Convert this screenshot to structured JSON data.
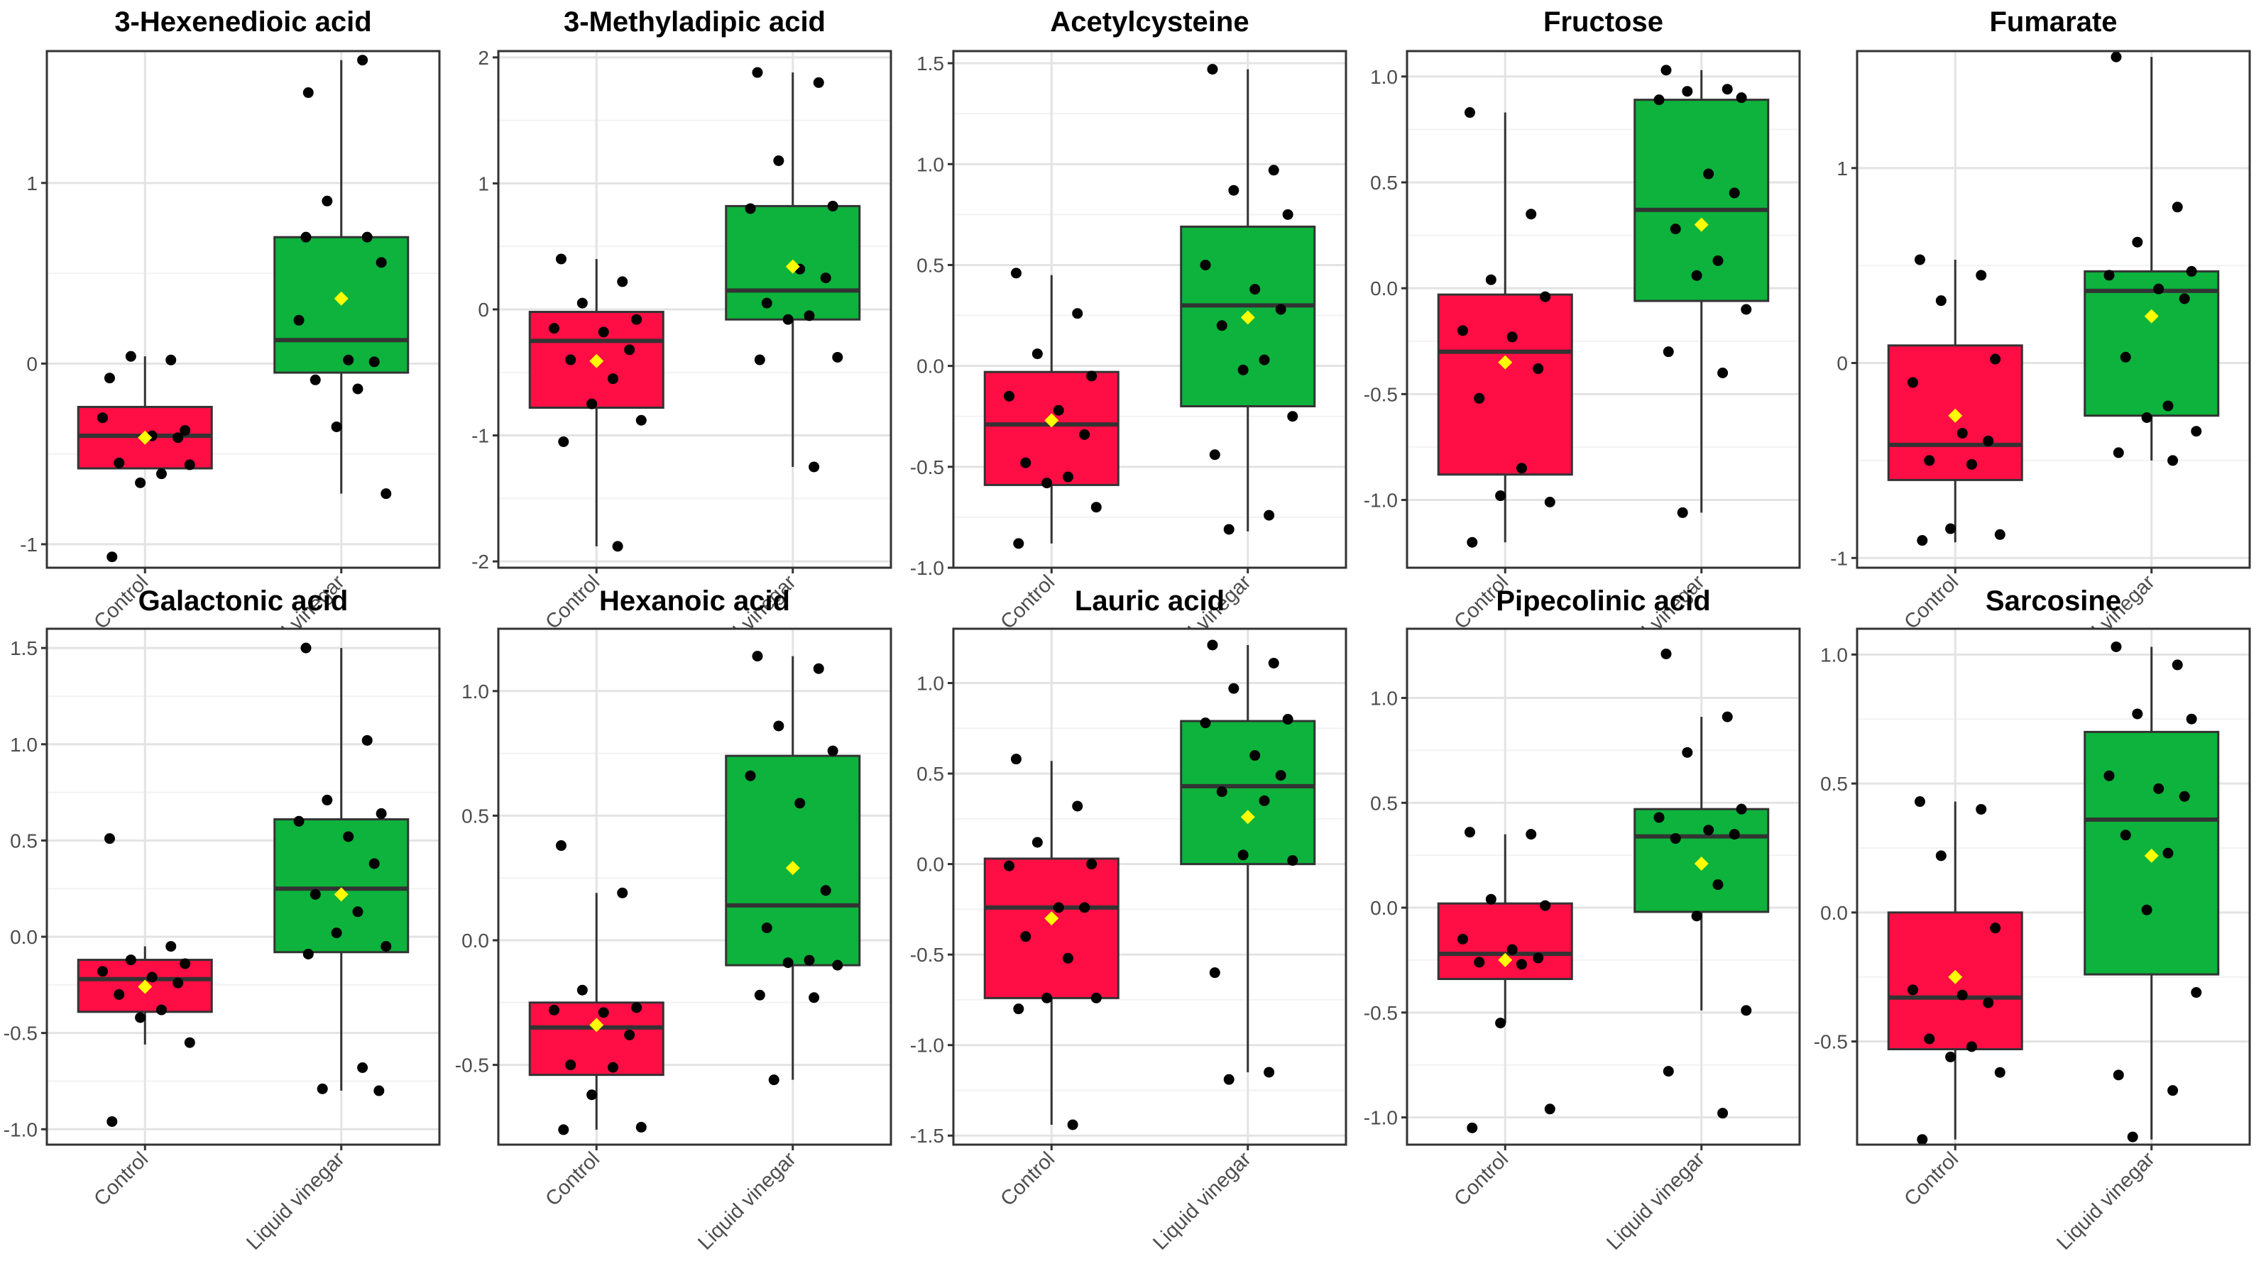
{
  "chart_data": [
    {
      "type": "box",
      "title": "3-Hexenedioic acid",
      "categories": [
        "Control",
        "Liquid vinegar"
      ],
      "ylim": [
        -1.13,
        1.73
      ],
      "yticks": [
        -1,
        0,
        1
      ],
      "ytick_labels": [
        "-1",
        "0",
        "1"
      ],
      "boxes": [
        {
          "q1": -0.58,
          "median": -0.4,
          "q3": -0.24,
          "whisker_low": -0.58,
          "whisker_high": 0.04,
          "mean": -0.41
        },
        {
          "q1": -0.05,
          "median": 0.13,
          "q3": 0.7,
          "whisker_low": -0.72,
          "whisker_high": 1.68,
          "mean": 0.36
        }
      ],
      "points": [
        [
          -0.08,
          0.02,
          0.04,
          -0.37,
          -0.3,
          -0.4,
          -0.41,
          -0.55,
          -0.61,
          -0.66,
          -0.56,
          -1.07
        ],
        [
          0.7,
          0.7,
          0.9,
          0.56,
          0.24,
          0.02,
          0.01,
          -0.09,
          -0.14,
          -0.35,
          -0.72,
          1.5,
          1.68
        ]
      ]
    },
    {
      "type": "box",
      "title": "3-Methyladipic acid",
      "categories": [
        "Control",
        "Liquid vinegar"
      ],
      "ylim": [
        -2.05,
        2.05
      ],
      "yticks": [
        -2,
        -1,
        0,
        1,
        2
      ],
      "ytick_labels": [
        "-2",
        "-1",
        "0",
        "1",
        "2"
      ],
      "boxes": [
        {
          "q1": -0.78,
          "median": -0.25,
          "q3": -0.02,
          "whisker_low": -1.88,
          "whisker_high": 0.4,
          "mean": -0.41
        },
        {
          "q1": -0.08,
          "median": 0.15,
          "q3": 0.82,
          "whisker_low": -1.25,
          "whisker_high": 1.88,
          "mean": 0.34
        }
      ],
      "points": [
        [
          0.4,
          0.22,
          0.05,
          -0.08,
          -0.15,
          -0.18,
          -0.32,
          -0.4,
          -0.55,
          -0.75,
          -0.88,
          -1.05,
          -1.88
        ],
        [
          1.88,
          1.8,
          1.18,
          0.82,
          0.8,
          0.32,
          0.25,
          0.05,
          -0.05,
          -0.08,
          -0.38,
          -0.4,
          -1.25
        ]
      ]
    },
    {
      "type": "box",
      "title": "Acetylcysteine",
      "categories": [
        "Control",
        "Liquid vinegar"
      ],
      "ylim": [
        -1.0,
        1.56
      ],
      "yticks": [
        -1.0,
        -0.5,
        0.0,
        0.5,
        1.0,
        1.5
      ],
      "ytick_labels": [
        "-1.0",
        "-0.5",
        "0.0",
        "0.5",
        "1.0",
        "1.5"
      ],
      "boxes": [
        {
          "q1": -0.59,
          "median": -0.29,
          "q3": -0.03,
          "whisker_low": -0.88,
          "whisker_high": 0.45,
          "mean": -0.27
        },
        {
          "q1": -0.2,
          "median": 0.3,
          "q3": 0.69,
          "whisker_low": -0.82,
          "whisker_high": 1.47,
          "mean": 0.24
        }
      ],
      "points": [
        [
          0.46,
          0.26,
          0.06,
          -0.05,
          -0.15,
          -0.22,
          -0.34,
          -0.48,
          -0.55,
          -0.58,
          -0.7,
          -0.88
        ],
        [
          1.47,
          0.97,
          0.87,
          0.75,
          0.5,
          0.38,
          0.28,
          0.2,
          0.03,
          -0.02,
          -0.25,
          -0.44,
          -0.74,
          -0.81
        ]
      ]
    },
    {
      "type": "box",
      "title": "Fructose",
      "categories": [
        "Control",
        "Liquid vinegar"
      ],
      "ylim": [
        -1.32,
        1.12
      ],
      "yticks": [
        -1.0,
        -0.5,
        0.0,
        0.5,
        1.0
      ],
      "ytick_labels": [
        "-1.0",
        "-0.5",
        "0.0",
        "0.5",
        "1.0"
      ],
      "boxes": [
        {
          "q1": -0.88,
          "median": -0.3,
          "q3": -0.03,
          "whisker_low": -1.2,
          "whisker_high": 0.83,
          "mean": -0.35
        },
        {
          "q1": -0.06,
          "median": 0.37,
          "q3": 0.89,
          "whisker_low": -1.06,
          "whisker_high": 1.03,
          "mean": 0.3
        }
      ],
      "points": [
        [
          0.83,
          0.35,
          0.04,
          -0.04,
          -0.2,
          -0.23,
          -0.38,
          -0.52,
          -0.85,
          -0.98,
          -1.01,
          -1.2
        ],
        [
          1.03,
          0.94,
          0.93,
          0.9,
          0.89,
          0.54,
          0.45,
          0.28,
          0.13,
          0.06,
          -0.1,
          -0.3,
          -0.4,
          -1.06
        ]
      ]
    },
    {
      "type": "box",
      "title": "Fumarate",
      "categories": [
        "Control",
        "Liquid vinegar"
      ],
      "ylim": [
        -1.05,
        1.6
      ],
      "yticks": [
        -1,
        0,
        1
      ],
      "ytick_labels": [
        "-1",
        "0",
        "1"
      ],
      "boxes": [
        {
          "q1": -0.6,
          "median": -0.42,
          "q3": 0.09,
          "whisker_low": -0.92,
          "whisker_high": 0.53,
          "mean": -0.27
        },
        {
          "q1": -0.27,
          "median": 0.37,
          "q3": 0.47,
          "whisker_low": -0.5,
          "whisker_high": 1.57,
          "mean": 0.24
        }
      ],
      "points": [
        [
          0.53,
          0.45,
          0.32,
          0.02,
          -0.1,
          -0.36,
          -0.4,
          -0.5,
          -0.52,
          -0.85,
          -0.88,
          -0.91
        ],
        [
          1.57,
          0.8,
          0.62,
          0.47,
          0.45,
          0.38,
          0.33,
          0.03,
          -0.22,
          -0.28,
          -0.35,
          -0.46,
          -0.5
        ]
      ]
    },
    {
      "type": "box",
      "title": "Galactonic acid",
      "categories": [
        "Control",
        "Liquid vinegar"
      ],
      "ylim": [
        -1.08,
        1.6
      ],
      "yticks": [
        -1.0,
        -0.5,
        0.0,
        0.5,
        1.0,
        1.5
      ],
      "ytick_labels": [
        "-1.0",
        "-0.5",
        "0.0",
        "0.5",
        "1.0",
        "1.5"
      ],
      "boxes": [
        {
          "q1": -0.39,
          "median": -0.22,
          "q3": -0.12,
          "whisker_low": -0.56,
          "whisker_high": -0.05,
          "mean": -0.26
        },
        {
          "q1": -0.08,
          "median": 0.25,
          "q3": 0.61,
          "whisker_low": -0.8,
          "whisker_high": 1.5,
          "mean": 0.22
        }
      ],
      "points": [
        [
          0.51,
          -0.05,
          -0.12,
          -0.14,
          -0.18,
          -0.21,
          -0.24,
          -0.3,
          -0.38,
          -0.42,
          -0.55,
          -0.96
        ],
        [
          1.5,
          1.02,
          0.71,
          0.64,
          0.6,
          0.52,
          0.38,
          0.22,
          0.13,
          0.02,
          -0.05,
          -0.09,
          -0.68,
          -0.79,
          -0.8
        ]
      ]
    },
    {
      "type": "box",
      "title": "Hexanoic acid",
      "categories": [
        "Control",
        "Liquid vinegar"
      ],
      "ylim": [
        -0.82,
        1.25
      ],
      "yticks": [
        -0.5,
        0.0,
        0.5,
        1.0
      ],
      "ytick_labels": [
        "-0.5",
        "0.0",
        "0.5",
        "1.0"
      ],
      "boxes": [
        {
          "q1": -0.54,
          "median": -0.35,
          "q3": -0.25,
          "whisker_low": -0.76,
          "whisker_high": 0.19,
          "mean": -0.34
        },
        {
          "q1": -0.1,
          "median": 0.14,
          "q3": 0.74,
          "whisker_low": -0.56,
          "whisker_high": 1.14,
          "mean": 0.29
        }
      ],
      "points": [
        [
          0.38,
          0.19,
          -0.2,
          -0.27,
          -0.28,
          -0.29,
          -0.38,
          -0.5,
          -0.51,
          -0.62,
          -0.75,
          -0.76
        ],
        [
          1.14,
          1.09,
          0.86,
          0.76,
          0.66,
          0.55,
          0.2,
          0.05,
          -0.08,
          -0.09,
          -0.1,
          -0.22,
          -0.23,
          -0.56
        ]
      ]
    },
    {
      "type": "box",
      "title": "Lauric acid",
      "categories": [
        "Control",
        "Liquid vinegar"
      ],
      "ylim": [
        -1.55,
        1.3
      ],
      "yticks": [
        -1.5,
        -1.0,
        -0.5,
        0.0,
        0.5,
        1.0
      ],
      "ytick_labels": [
        "-1.5",
        "-1.0",
        "-0.5",
        "0.0",
        "0.5",
        "1.0"
      ],
      "boxes": [
        {
          "q1": -0.74,
          "median": -0.24,
          "q3": 0.03,
          "whisker_low": -1.44,
          "whisker_high": 0.57,
          "mean": -0.3
        },
        {
          "q1": 0.0,
          "median": 0.43,
          "q3": 0.79,
          "whisker_low": -1.15,
          "whisker_high": 1.21,
          "mean": 0.26
        }
      ],
      "points": [
        [
          0.58,
          0.32,
          0.12,
          0.0,
          -0.01,
          -0.24,
          -0.24,
          -0.4,
          -0.52,
          -0.74,
          -0.74,
          -0.8,
          -1.44
        ],
        [
          1.21,
          1.11,
          0.97,
          0.8,
          0.78,
          0.6,
          0.49,
          0.4,
          0.35,
          0.05,
          0.02,
          -0.6,
          -1.15,
          -1.19
        ]
      ]
    },
    {
      "type": "box",
      "title": "Pipecolinic acid",
      "categories": [
        "Control",
        "Liquid vinegar"
      ],
      "ylim": [
        -1.13,
        1.33
      ],
      "yticks": [
        -1.0,
        -0.5,
        0.0,
        0.5,
        1.0
      ],
      "ytick_labels": [
        "-1.0",
        "-0.5",
        "0.0",
        "0.5",
        "1.0"
      ],
      "boxes": [
        {
          "q1": -0.34,
          "median": -0.22,
          "q3": 0.02,
          "whisker_low": -0.55,
          "whisker_high": 0.35,
          "mean": -0.25
        },
        {
          "q1": -0.02,
          "median": 0.34,
          "q3": 0.47,
          "whisker_low": -0.49,
          "whisker_high": 0.91,
          "mean": 0.21
        }
      ],
      "points": [
        [
          0.36,
          0.35,
          0.04,
          0.01,
          -0.15,
          -0.2,
          -0.24,
          -0.26,
          -0.27,
          -0.55,
          -0.96,
          -1.05
        ],
        [
          1.21,
          0.91,
          0.74,
          0.47,
          0.43,
          0.37,
          0.35,
          0.33,
          0.11,
          -0.04,
          -0.49,
          -0.78,
          -0.98
        ]
      ]
    },
    {
      "type": "box",
      "title": "Sarcosine",
      "categories": [
        "Control",
        "Liquid vinegar"
      ],
      "ylim": [
        -0.9,
        1.1
      ],
      "yticks": [
        -0.5,
        0.0,
        0.5,
        1.0
      ],
      "ytick_labels": [
        "-0.5",
        "0.0",
        "0.5",
        "1.0"
      ],
      "boxes": [
        {
          "q1": -0.53,
          "median": -0.33,
          "q3": 0.0,
          "whisker_low": -0.88,
          "whisker_high": 0.43,
          "mean": -0.25
        },
        {
          "q1": -0.24,
          "median": 0.36,
          "q3": 0.7,
          "whisker_low": -0.88,
          "whisker_high": 1.03,
          "mean": 0.22
        }
      ],
      "points": [
        [
          0.43,
          0.4,
          0.22,
          -0.06,
          -0.3,
          -0.32,
          -0.35,
          -0.49,
          -0.52,
          -0.56,
          -0.62,
          -0.88
        ],
        [
          1.03,
          0.96,
          0.77,
          0.75,
          0.53,
          0.48,
          0.45,
          0.3,
          0.23,
          0.01,
          -0.31,
          -0.63,
          -0.69,
          -0.87
        ]
      ]
    }
  ],
  "colors": {
    "control_fill": "#ff0d45",
    "vinegar_fill": "#0db33c",
    "mean_marker": "#ffff00",
    "point": "#000000"
  }
}
